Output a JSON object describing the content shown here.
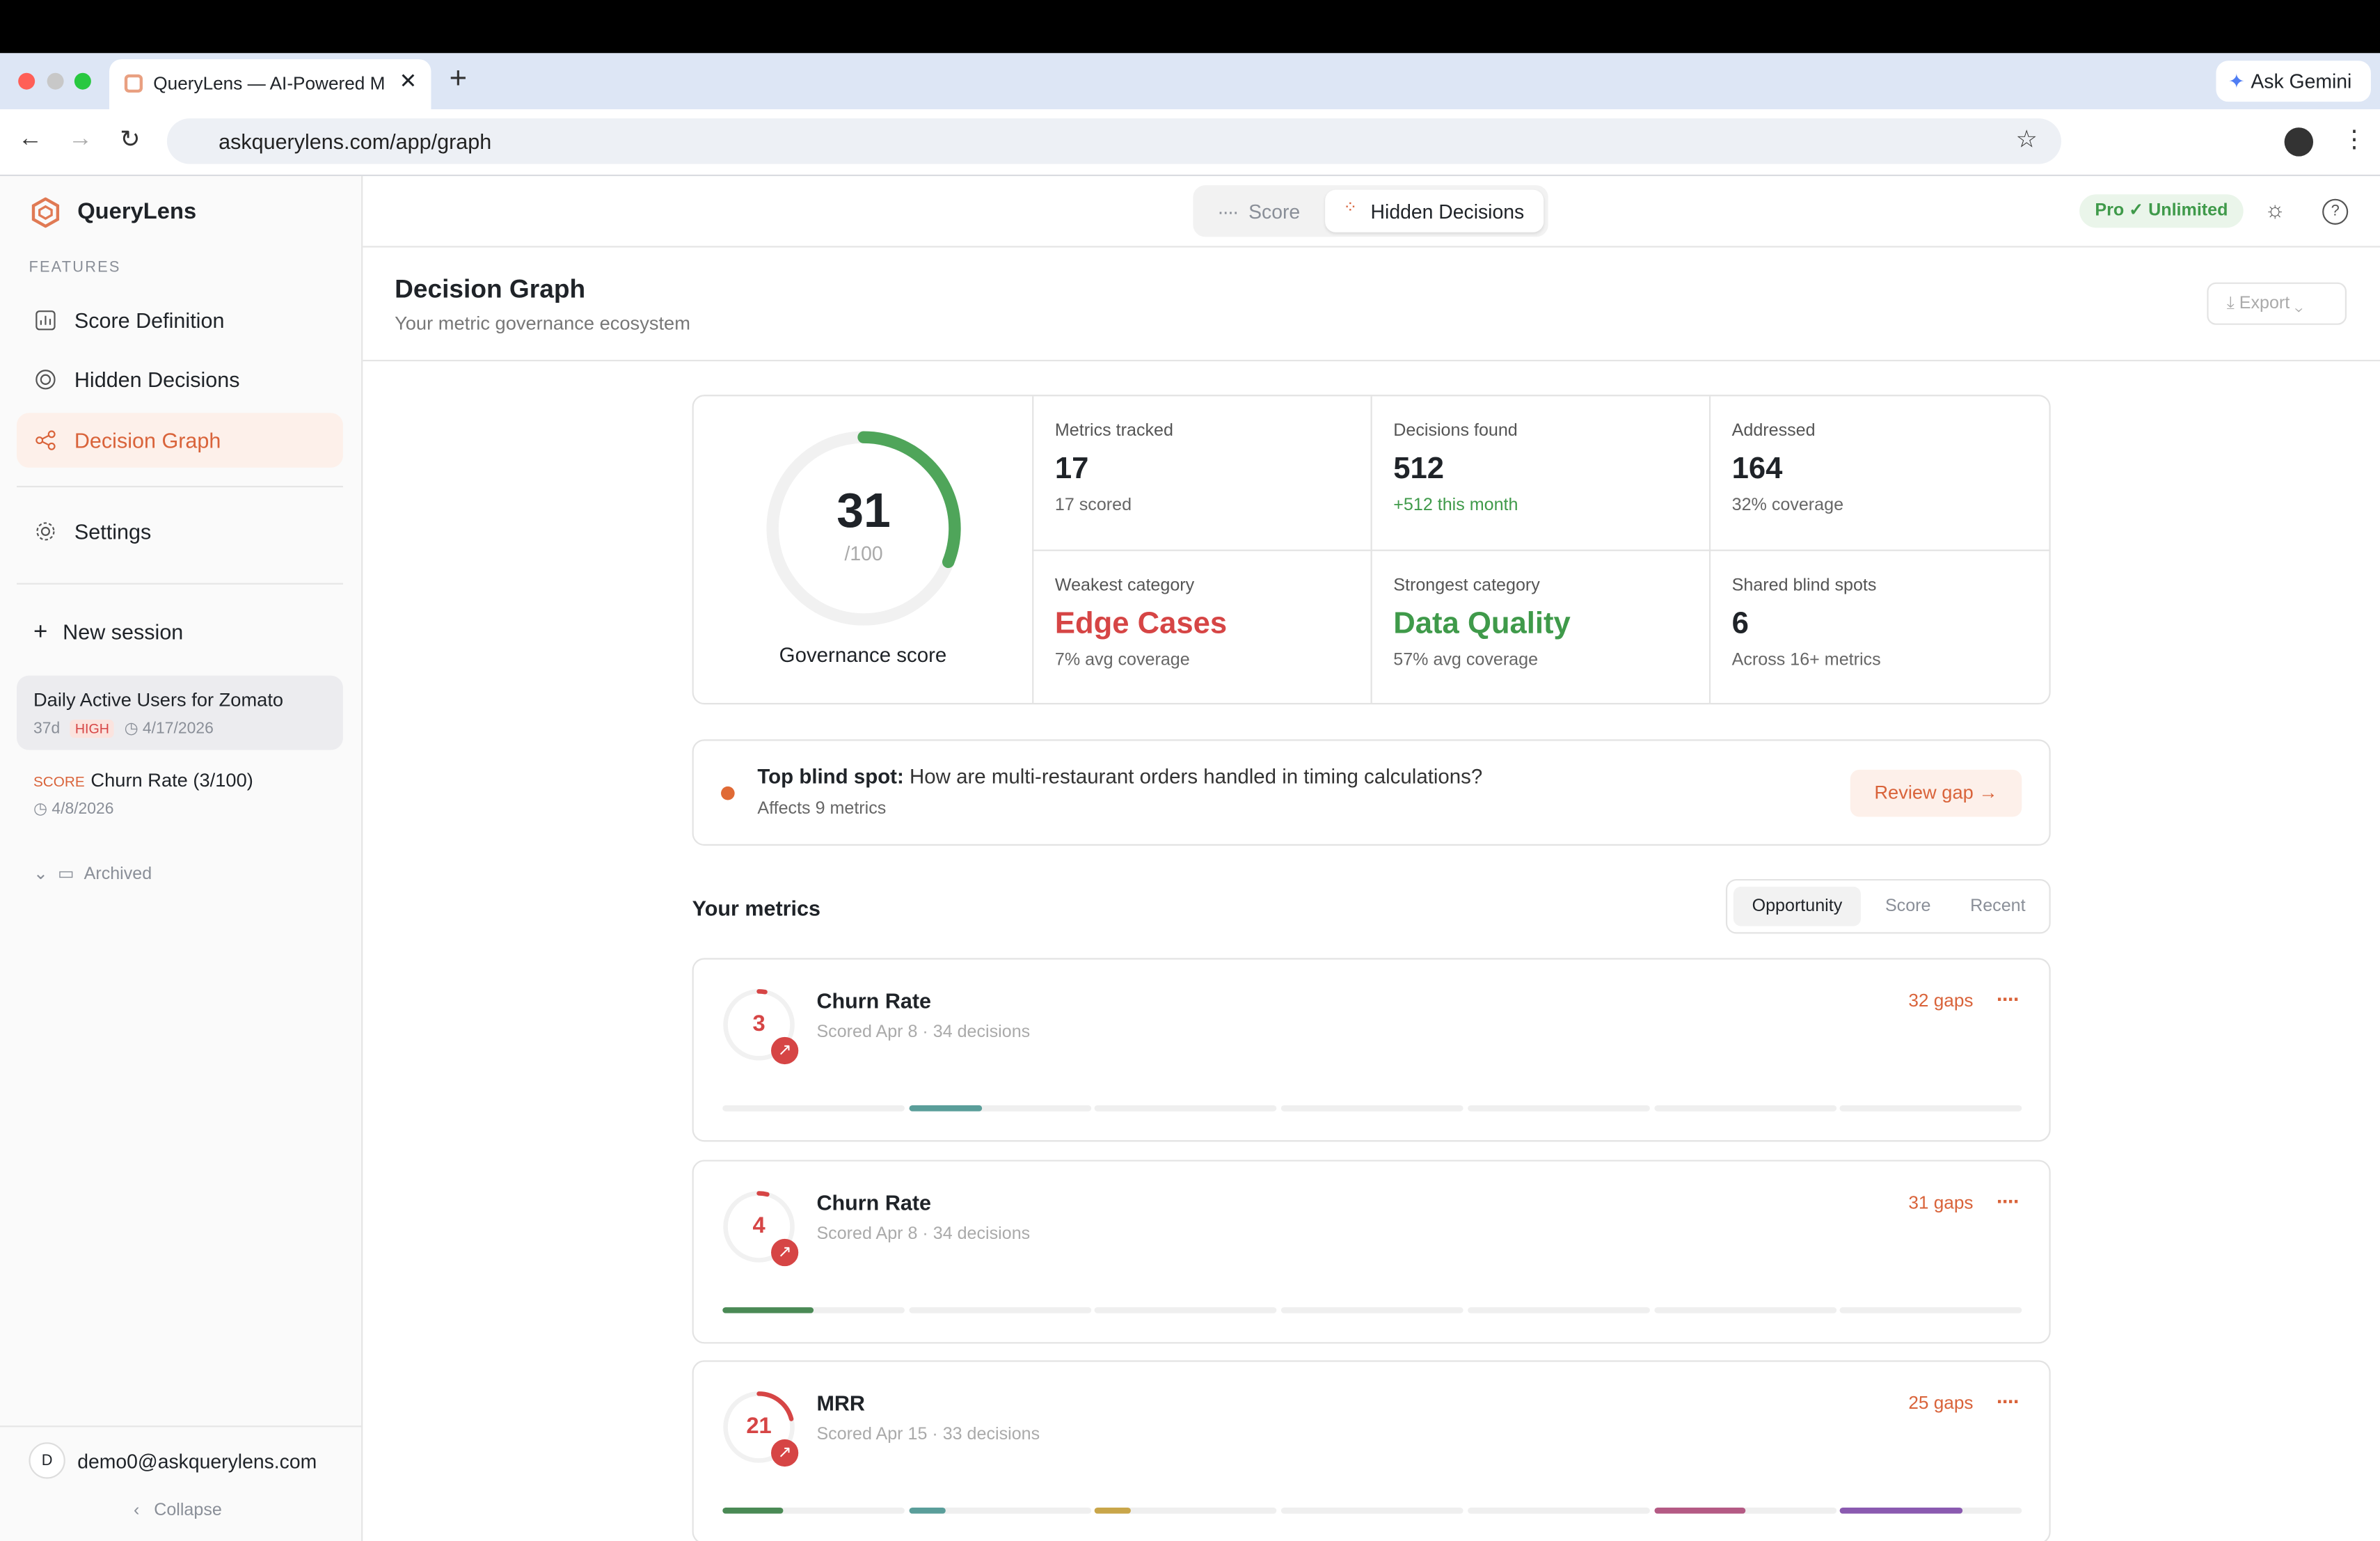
{
  "browser": {
    "tab_title": "QueryLens — AI-Powered Me",
    "ask_gemini": "Ask Gemini",
    "url": "askquerylens.com/app/graph"
  },
  "sidebar": {
    "brand": "QueryLens",
    "section": "FEATURES",
    "nav": [
      "Score Definition",
      "Hidden Decisions",
      "Decision Graph",
      "Settings"
    ],
    "new_session": "New session",
    "sessions": [
      {
        "title": "Daily Active Users for Zomato",
        "age": "37d",
        "badge": "HIGH",
        "date": "4/17/2026"
      },
      {
        "tag": "SCORE",
        "title": "Churn Rate (3/100)",
        "date": "4/8/2026"
      }
    ],
    "archived": "Archived",
    "user_initial": "D",
    "user": "demo0@askquerylens.com",
    "collapse": "Collapse"
  },
  "topbar": {
    "tabs": [
      "Score",
      "Hidden Decisions"
    ],
    "plan": "Pro ✓ Unlimited"
  },
  "header": {
    "title": "Decision Graph",
    "subtitle": "Your metric governance ecosystem",
    "export": "Export"
  },
  "summary": {
    "score": 31,
    "score_max": "/100",
    "score_label": "Governance score",
    "stats": [
      {
        "label": "Metrics tracked",
        "value": 17,
        "note": "17 scored"
      },
      {
        "label": "Decisions found",
        "value": 512,
        "note": "+512 this month"
      },
      {
        "label": "Addressed",
        "value": 164,
        "note": "32% coverage"
      },
      {
        "label": "Weakest category",
        "value": "Edge Cases",
        "note": "7% avg coverage"
      },
      {
        "label": "Strongest category",
        "value": "Data Quality",
        "note": "57% avg coverage"
      },
      {
        "label": "Shared blind spots",
        "value": 6,
        "note": "Across 16+ metrics"
      }
    ]
  },
  "blind_spot": {
    "label": "Top blind spot:",
    "text": "How are multi-restaurant orders handled in timing calculations?",
    "affects": "Affects 9 metrics",
    "action": "Review gap"
  },
  "metrics": {
    "title": "Your metrics",
    "sort": [
      "Opportunity",
      "Score",
      "Recent"
    ],
    "items": [
      {
        "score": 3,
        "name": "Churn Rate",
        "meta": "Scored Apr 8 · 34 decisions",
        "gaps": "32 gaps"
      },
      {
        "score": 4,
        "name": "Churn Rate",
        "meta": "Scored Apr 8 · 34 decisions",
        "gaps": "31 gaps"
      },
      {
        "score": 21,
        "name": "MRR",
        "meta": "Scored Apr 15 · 33 decisions",
        "gaps": "25 gaps"
      }
    ]
  }
}
